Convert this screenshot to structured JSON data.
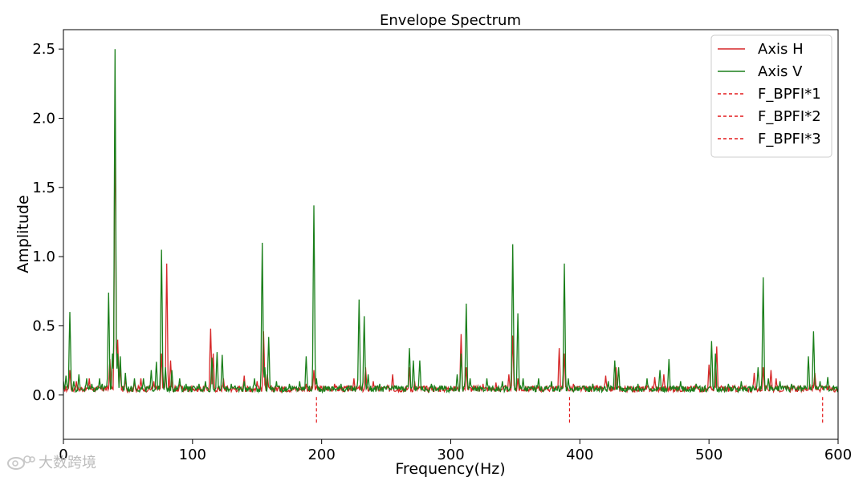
{
  "chart_data": {
    "type": "line",
    "title": "Envelope Spectrum",
    "xlabel": "Frequency(Hz)",
    "ylabel": "Amplitude",
    "xlim": [
      0,
      600
    ],
    "ylim": [
      -0.32,
      2.64
    ],
    "xticks": [
      0,
      100,
      200,
      300,
      400,
      500,
      600
    ],
    "yticks": [
      0.0,
      0.5,
      1.0,
      1.5,
      2.0,
      2.5
    ],
    "ytick_labels": [
      "0.0",
      "0.5",
      "1.0",
      "1.5",
      "2.0",
      "2.5"
    ],
    "grid": false,
    "legend_position": "top-right",
    "series": [
      {
        "name": "Axis H",
        "color": "#d62728",
        "style": "solid",
        "baseline": 0.04,
        "peaks": [
          [
            0,
            0.06
          ],
          [
            5,
            0.18
          ],
          [
            10,
            0.1
          ],
          [
            20,
            0.12
          ],
          [
            36,
            0.26
          ],
          [
            40,
            2.1
          ],
          [
            42,
            0.4
          ],
          [
            44,
            0.2
          ],
          [
            48,
            0.12
          ],
          [
            55,
            0.1
          ],
          [
            60,
            0.12
          ],
          [
            70,
            0.1
          ],
          [
            76,
            0.3
          ],
          [
            80,
            0.95
          ],
          [
            83,
            0.25
          ],
          [
            90,
            0.08
          ],
          [
            100,
            0.06
          ],
          [
            110,
            0.08
          ],
          [
            114,
            0.48
          ],
          [
            116,
            0.3
          ],
          [
            124,
            0.12
          ],
          [
            140,
            0.14
          ],
          [
            150,
            0.1
          ],
          [
            155,
            0.46
          ],
          [
            158,
            0.15
          ],
          [
            170,
            0.06
          ],
          [
            188,
            0.08
          ],
          [
            194,
            0.18
          ],
          [
            200,
            0.06
          ],
          [
            210,
            0.08
          ],
          [
            225,
            0.12
          ],
          [
            234,
            0.2
          ],
          [
            240,
            0.1
          ],
          [
            250,
            0.05
          ],
          [
            255,
            0.15
          ],
          [
            268,
            0.2
          ],
          [
            272,
            0.1
          ],
          [
            285,
            0.05
          ],
          [
            300,
            0.06
          ],
          [
            308,
            0.44
          ],
          [
            312,
            0.2
          ],
          [
            325,
            0.08
          ],
          [
            335,
            0.09
          ],
          [
            345,
            0.15
          ],
          [
            348,
            0.43
          ],
          [
            352,
            0.12
          ],
          [
            365,
            0.06
          ],
          [
            378,
            0.08
          ],
          [
            384,
            0.34
          ],
          [
            388,
            0.3
          ],
          [
            395,
            0.08
          ],
          [
            410,
            0.08
          ],
          [
            420,
            0.14
          ],
          [
            428,
            0.2
          ],
          [
            440,
            0.06
          ],
          [
            458,
            0.13
          ],
          [
            465,
            0.15
          ],
          [
            480,
            0.06
          ],
          [
            490,
            0.08
          ],
          [
            500,
            0.22
          ],
          [
            506,
            0.35
          ],
          [
            520,
            0.06
          ],
          [
            535,
            0.16
          ],
          [
            542,
            0.2
          ],
          [
            548,
            0.18
          ],
          [
            552,
            0.12
          ],
          [
            565,
            0.06
          ],
          [
            578,
            0.08
          ],
          [
            582,
            0.16
          ],
          [
            590,
            0.06
          ],
          [
            600,
            0.02
          ]
        ]
      },
      {
        "name": "Axis V",
        "color": "#1a7f1a",
        "style": "solid",
        "baseline": 0.04,
        "peaks": [
          [
            0,
            0.1
          ],
          [
            2,
            0.14
          ],
          [
            5,
            0.6
          ],
          [
            8,
            0.1
          ],
          [
            12,
            0.15
          ],
          [
            18,
            0.12
          ],
          [
            22,
            0.08
          ],
          [
            28,
            0.12
          ],
          [
            30,
            0.08
          ],
          [
            35,
            0.74
          ],
          [
            38,
            0.3
          ],
          [
            40,
            2.5
          ],
          [
            42,
            0.3
          ],
          [
            44,
            0.28
          ],
          [
            48,
            0.16
          ],
          [
            55,
            0.12
          ],
          [
            62,
            0.12
          ],
          [
            68,
            0.18
          ],
          [
            72,
            0.24
          ],
          [
            76,
            1.05
          ],
          [
            79,
            0.2
          ],
          [
            84,
            0.18
          ],
          [
            90,
            0.12
          ],
          [
            95,
            0.08
          ],
          [
            105,
            0.08
          ],
          [
            110,
            0.1
          ],
          [
            115,
            0.27
          ],
          [
            119,
            0.31
          ],
          [
            123,
            0.29
          ],
          [
            130,
            0.08
          ],
          [
            140,
            0.1
          ],
          [
            148,
            0.12
          ],
          [
            154,
            1.1
          ],
          [
            156,
            0.2
          ],
          [
            159,
            0.42
          ],
          [
            165,
            0.1
          ],
          [
            175,
            0.08
          ],
          [
            183,
            0.1
          ],
          [
            188,
            0.28
          ],
          [
            194,
            1.37
          ],
          [
            196,
            0.12
          ],
          [
            205,
            0.06
          ],
          [
            215,
            0.08
          ],
          [
            229,
            0.69
          ],
          [
            233,
            0.57
          ],
          [
            236,
            0.15
          ],
          [
            245,
            0.08
          ],
          [
            258,
            0.07
          ],
          [
            268,
            0.34
          ],
          [
            271,
            0.25
          ],
          [
            276,
            0.25
          ],
          [
            285,
            0.08
          ],
          [
            295,
            0.06
          ],
          [
            305,
            0.15
          ],
          [
            308,
            0.3
          ],
          [
            312,
            0.66
          ],
          [
            315,
            0.12
          ],
          [
            328,
            0.12
          ],
          [
            340,
            0.1
          ],
          [
            348,
            1.09
          ],
          [
            352,
            0.59
          ],
          [
            356,
            0.12
          ],
          [
            368,
            0.12
          ],
          [
            378,
            0.1
          ],
          [
            388,
            0.95
          ],
          [
            391,
            0.12
          ],
          [
            400,
            0.06
          ],
          [
            410,
            0.08
          ],
          [
            422,
            0.1
          ],
          [
            427,
            0.25
          ],
          [
            430,
            0.2
          ],
          [
            445,
            0.08
          ],
          [
            452,
            0.12
          ],
          [
            462,
            0.18
          ],
          [
            469,
            0.26
          ],
          [
            478,
            0.1
          ],
          [
            490,
            0.08
          ],
          [
            502,
            0.39
          ],
          [
            505,
            0.3
          ],
          [
            515,
            0.08
          ],
          [
            525,
            0.1
          ],
          [
            538,
            0.2
          ],
          [
            542,
            0.85
          ],
          [
            546,
            0.12
          ],
          [
            555,
            0.1
          ],
          [
            564,
            0.08
          ],
          [
            577,
            0.28
          ],
          [
            581,
            0.46
          ],
          [
            586,
            0.1
          ],
          [
            592,
            0.13
          ],
          [
            596,
            0.06
          ],
          [
            600,
            0.03
          ]
        ]
      },
      {
        "name": "F_BPFI*1",
        "color": "#e31a1c",
        "style": "dashed",
        "x": [
          196,
          196
        ],
        "y": [
          -0.2,
          0.0
        ]
      },
      {
        "name": "F_BPFI*2",
        "color": "#e31a1c",
        "style": "dashed",
        "x": [
          392,
          392
        ],
        "y": [
          -0.2,
          0.0
        ]
      },
      {
        "name": "F_BPFI*3",
        "color": "#e31a1c",
        "style": "dashed",
        "x": [
          588,
          588
        ],
        "y": [
          -0.2,
          0.0
        ]
      }
    ]
  },
  "watermark": {
    "text": "大数跨境",
    "icon": "weibo-logo-icon"
  }
}
